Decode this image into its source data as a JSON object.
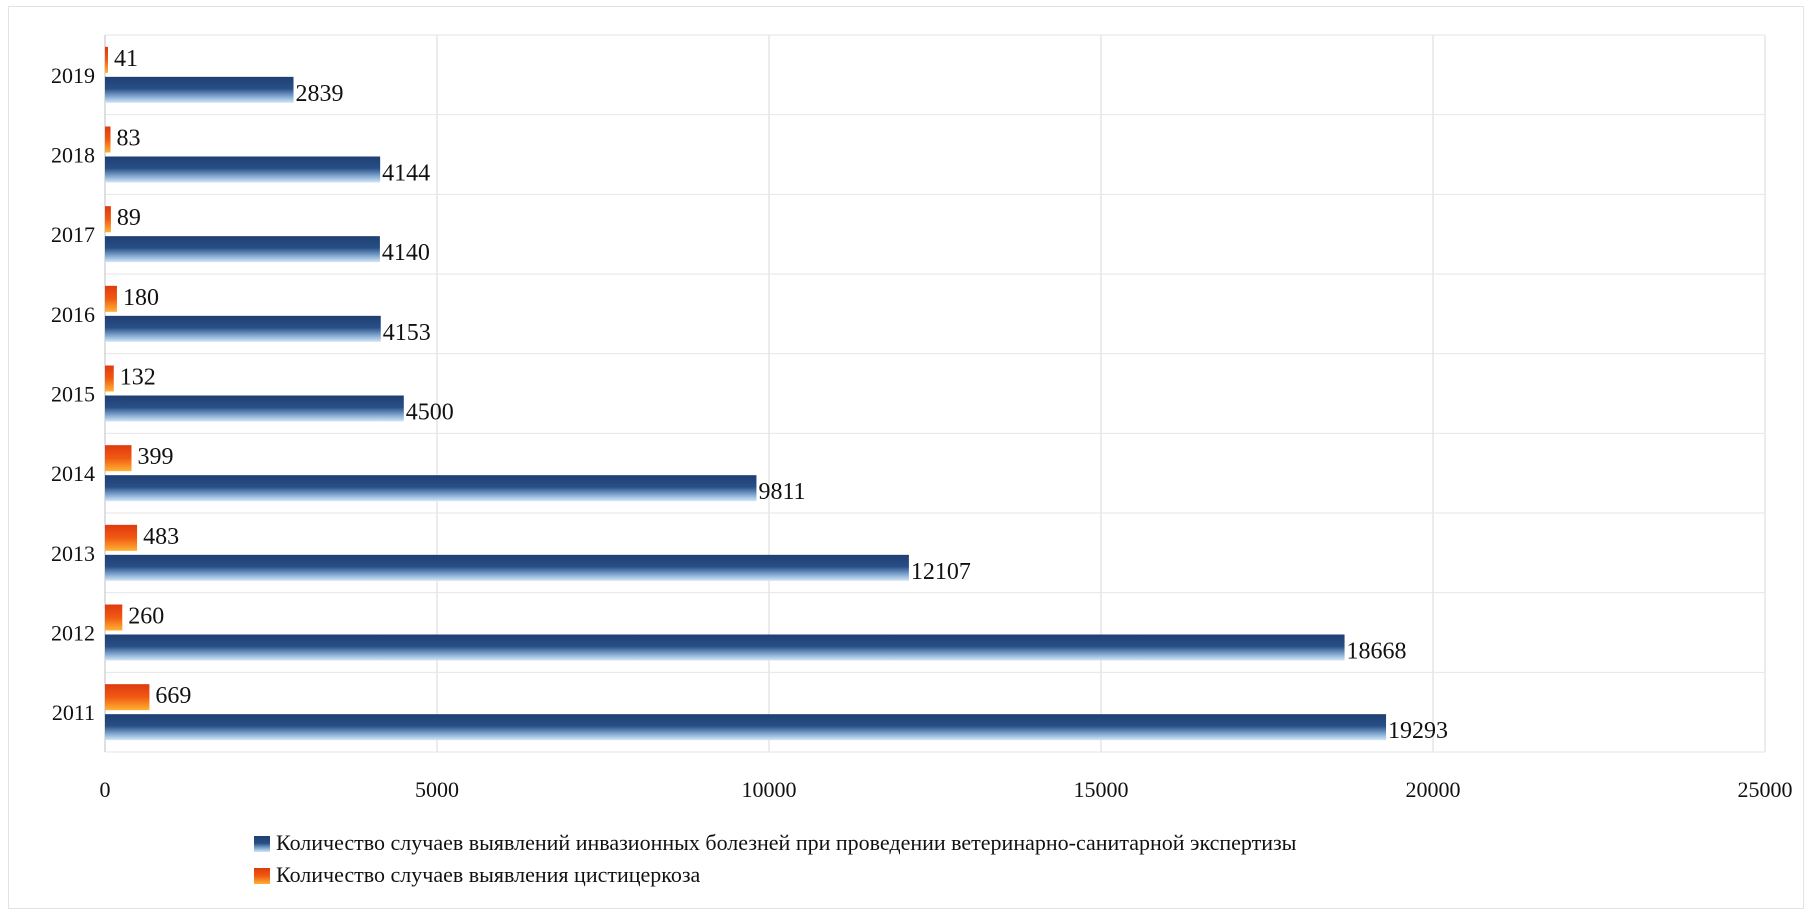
{
  "chart_data": {
    "type": "bar",
    "orientation": "horizontal",
    "categories": [
      "2011",
      "2012",
      "2013",
      "2014",
      "2015",
      "2016",
      "2017",
      "2018",
      "2019"
    ],
    "series": [
      {
        "name": "Количество случаев выявлений инвазионных болезней при проведении ветеринарно-санитарной экспертизы",
        "values": [
          19293,
          18668,
          12107,
          9811,
          4500,
          4153,
          4140,
          4144,
          2839
        ],
        "color": "#1f4e79"
      },
      {
        "name": "Количество случаев выявления цистицеркоза",
        "values": [
          669,
          260,
          483,
          399,
          132,
          180,
          89,
          83,
          41
        ],
        "color": "#e8590c"
      }
    ],
    "xlim": [
      0,
      25000
    ],
    "xticks": [
      "0",
      "5000",
      "10000",
      "15000",
      "20000",
      "25000"
    ],
    "xtick_values": [
      0,
      5000,
      10000,
      15000,
      20000,
      25000
    ],
    "grid": true,
    "legend_position": "bottom"
  }
}
